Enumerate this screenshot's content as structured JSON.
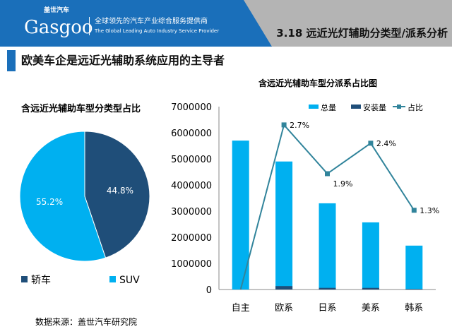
{
  "header": {
    "logo_text": "Gasgoo",
    "logo_cn": "盖世汽车",
    "slogan": "全球领先的汽车产业综合服务提供商",
    "slogan_en": "The Global Leading Auto Industry Service Provider",
    "section_title": "3.18 远近光灯辅助分类型/派系分析"
  },
  "headline": "欧美车企是远近光辅助系统应用的主导者",
  "source": "数据来源：盖世汽车研究院",
  "colors": {
    "light": "#00b0f0",
    "dark": "#1f4e79",
    "line": "#31849b"
  },
  "chart_data": [
    {
      "type": "pie",
      "title": "含远近光辅助车型分类型占比",
      "labels": [
        "轿车",
        "SUV"
      ],
      "values": [
        44.8,
        55.2
      ],
      "value_labels": [
        "44.8%",
        "55.2%"
      ],
      "legend": "bottom"
    },
    {
      "type": "bar",
      "title": "含远近光辅助车型分派系占比图",
      "categories": [
        "自主",
        "欧系",
        "日系",
        "美系",
        "韩系"
      ],
      "series": [
        {
          "name": "总量",
          "type": "bar",
          "values": [
            5700000,
            4900000,
            3300000,
            2570000,
            1680000
          ]
        },
        {
          "name": "安装量",
          "type": "bar",
          "values": [
            0,
            130000,
            63000,
            62000,
            22000
          ]
        },
        {
          "name": "占比",
          "type": "line",
          "axis": "secondary",
          "values": [
            0,
            2.7,
            1.9,
            2.4,
            1.3
          ],
          "labels": [
            "",
            "2.7%",
            "1.9%",
            "2.4%",
            "1.3%"
          ]
        }
      ],
      "ylim": [
        0,
        7000000
      ],
      "yticks": [
        "0",
        "1000000",
        "2000000",
        "3000000",
        "4000000",
        "5000000",
        "6000000",
        "7000000"
      ],
      "y2lim": [
        0,
        3.0
      ],
      "legend": "top-right"
    }
  ]
}
